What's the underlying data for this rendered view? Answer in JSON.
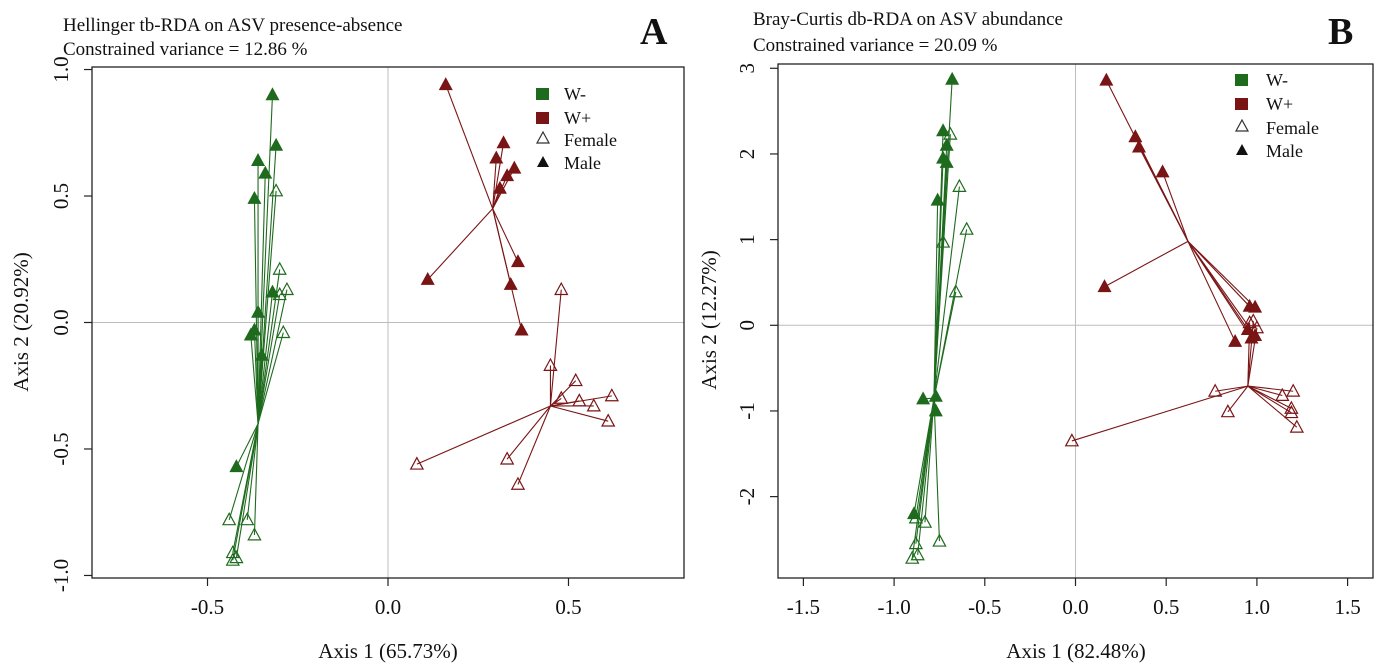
{
  "colors": {
    "W-": "#1e6b1e",
    "W+": "#7a1515"
  },
  "chart_data": [
    {
      "type": "scatter",
      "panel_label": "A",
      "title": "Hellinger tb-RDA on ASV presence-absence",
      "subtitle": "Constrained variance = 12.86 %",
      "xlabel": "Axis 1 (65.73%)",
      "ylabel": "Axis 2 (20.92%)",
      "xlim": [
        -0.82,
        0.82
      ],
      "ylim": [
        -1.01,
        1.01
      ],
      "xticks": [
        -0.5,
        0.0,
        0.5
      ],
      "xtick_labels": [
        "-0.5",
        "0.0",
        "0.5"
      ],
      "yticks": [
        -1.0,
        -0.5,
        0.0,
        0.5,
        1.0
      ],
      "ytick_labels": [
        "-1.0",
        "-0.5",
        "0.0",
        "0.5",
        "1.0"
      ],
      "legend": {
        "position": "top-right",
        "entries": [
          "W-",
          "W+",
          "Female",
          "Male"
        ]
      },
      "groups": [
        {
          "color_key": "W-",
          "sex": "Male",
          "centroid": [
            -0.36,
            -0.4
          ],
          "points": [
            [
              -0.32,
              0.9
            ],
            [
              -0.31,
              0.7
            ],
            [
              -0.36,
              0.64
            ],
            [
              -0.34,
              0.59
            ],
            [
              -0.37,
              0.49
            ],
            [
              -0.32,
              0.12
            ],
            [
              -0.36,
              0.04
            ],
            [
              -0.37,
              -0.03
            ],
            [
              -0.38,
              -0.05
            ],
            [
              -0.35,
              -0.13
            ],
            [
              -0.42,
              -0.57
            ]
          ]
        },
        {
          "color_key": "W-",
          "sex": "Female",
          "centroid": [
            -0.36,
            -0.4
          ],
          "points": [
            [
              -0.31,
              0.52
            ],
            [
              -0.3,
              0.21
            ],
            [
              -0.28,
              0.13
            ],
            [
              -0.3,
              0.11
            ],
            [
              -0.29,
              -0.04
            ],
            [
              -0.39,
              -0.78
            ],
            [
              -0.37,
              -0.84
            ],
            [
              -0.44,
              -0.78
            ],
            [
              -0.43,
              -0.91
            ],
            [
              -0.42,
              -0.93
            ],
            [
              -0.43,
              -0.94
            ]
          ]
        },
        {
          "color_key": "W+",
          "sex": "Male",
          "centroid": [
            0.29,
            0.45
          ],
          "points": [
            [
              0.16,
              0.94
            ],
            [
              0.32,
              0.71
            ],
            [
              0.3,
              0.65
            ],
            [
              0.35,
              0.61
            ],
            [
              0.33,
              0.58
            ],
            [
              0.31,
              0.53
            ],
            [
              0.36,
              0.24
            ],
            [
              0.34,
              0.15
            ],
            [
              0.37,
              -0.03
            ],
            [
              0.11,
              0.17
            ]
          ]
        },
        {
          "color_key": "W+",
          "sex": "Female",
          "centroid": [
            0.45,
            -0.33
          ],
          "points": [
            [
              0.48,
              0.13
            ],
            [
              0.45,
              -0.17
            ],
            [
              0.48,
              -0.3
            ],
            [
              0.52,
              -0.23
            ],
            [
              0.53,
              -0.31
            ],
            [
              0.57,
              -0.33
            ],
            [
              0.62,
              -0.29
            ],
            [
              0.61,
              -0.39
            ],
            [
              0.33,
              -0.54
            ],
            [
              0.36,
              -0.64
            ],
            [
              0.08,
              -0.56
            ]
          ]
        }
      ]
    },
    {
      "type": "scatter",
      "panel_label": "B",
      "title": "Bray-Curtis db-RDA on ASV abundance",
      "subtitle": "Constrained variance = 20.09 %",
      "xlabel": "Axis 1 (82.48%)",
      "ylabel": "Axis 2 (12.27%)",
      "xlim": [
        -1.64,
        1.64
      ],
      "ylim": [
        -2.95,
        3.05
      ],
      "xticks": [
        -1.5,
        -1.0,
        -0.5,
        0.0,
        0.5,
        1.0,
        1.5
      ],
      "xtick_labels": [
        "-1.5",
        "-1.0",
        "-0.5",
        "0.0",
        "0.5",
        "1.0",
        "1.5"
      ],
      "yticks": [
        -2,
        -1,
        0,
        1,
        2,
        3
      ],
      "ytick_labels": [
        "-2",
        "-1",
        "0",
        "1",
        "2",
        "3"
      ],
      "legend": {
        "position": "top-right",
        "entries": [
          "W-",
          "W+",
          "Female",
          "Male"
        ]
      },
      "groups": [
        {
          "color_key": "W-",
          "sex": "Male",
          "centroid": [
            -0.78,
            -0.85
          ],
          "points": [
            [
              -0.68,
              2.87
            ],
            [
              -0.73,
              2.27
            ],
            [
              -0.71,
              2.1
            ],
            [
              -0.73,
              1.95
            ],
            [
              -0.71,
              1.9
            ],
            [
              -0.76,
              1.46
            ],
            [
              -0.84,
              -0.86
            ],
            [
              -0.77,
              -0.83
            ],
            [
              -0.77,
              -1.0
            ],
            [
              -0.89,
              -2.2
            ]
          ]
        },
        {
          "color_key": "W-",
          "sex": "Female",
          "centroid": [
            -0.78,
            -0.85
          ],
          "points": [
            [
              -0.69,
              2.23
            ],
            [
              -0.64,
              1.62
            ],
            [
              -0.6,
              1.12
            ],
            [
              -0.73,
              0.97
            ],
            [
              -0.66,
              0.39
            ],
            [
              -0.88,
              -2.25
            ],
            [
              -0.83,
              -2.3
            ],
            [
              -0.88,
              -2.55
            ],
            [
              -0.87,
              -2.68
            ],
            [
              -0.9,
              -2.72
            ],
            [
              -0.75,
              -2.52
            ]
          ]
        },
        {
          "color_key": "W+",
          "sex": "Male",
          "centroid": [
            0.62,
            0.98
          ],
          "points": [
            [
              0.17,
              2.86
            ],
            [
              0.33,
              2.2
            ],
            [
              0.35,
              2.08
            ],
            [
              0.48,
              1.79
            ],
            [
              0.16,
              0.45
            ],
            [
              0.88,
              -0.19
            ],
            [
              0.96,
              0.22
            ],
            [
              0.99,
              0.21
            ],
            [
              0.97,
              -0.15
            ],
            [
              0.95,
              -0.05
            ],
            [
              0.99,
              -0.12
            ]
          ]
        },
        {
          "color_key": "W+",
          "sex": "Female",
          "centroid": [
            0.95,
            -0.71
          ],
          "points": [
            [
              0.98,
              0.05
            ],
            [
              1.0,
              -0.03
            ],
            [
              0.96,
              0.03
            ],
            [
              0.77,
              -0.77
            ],
            [
              0.84,
              -1.01
            ],
            [
              1.14,
              -0.82
            ],
            [
              1.2,
              -0.77
            ],
            [
              1.19,
              -0.97
            ],
            [
              1.19,
              -1.02
            ],
            [
              1.22,
              -1.19
            ],
            [
              -0.02,
              -1.35
            ]
          ]
        }
      ]
    }
  ]
}
